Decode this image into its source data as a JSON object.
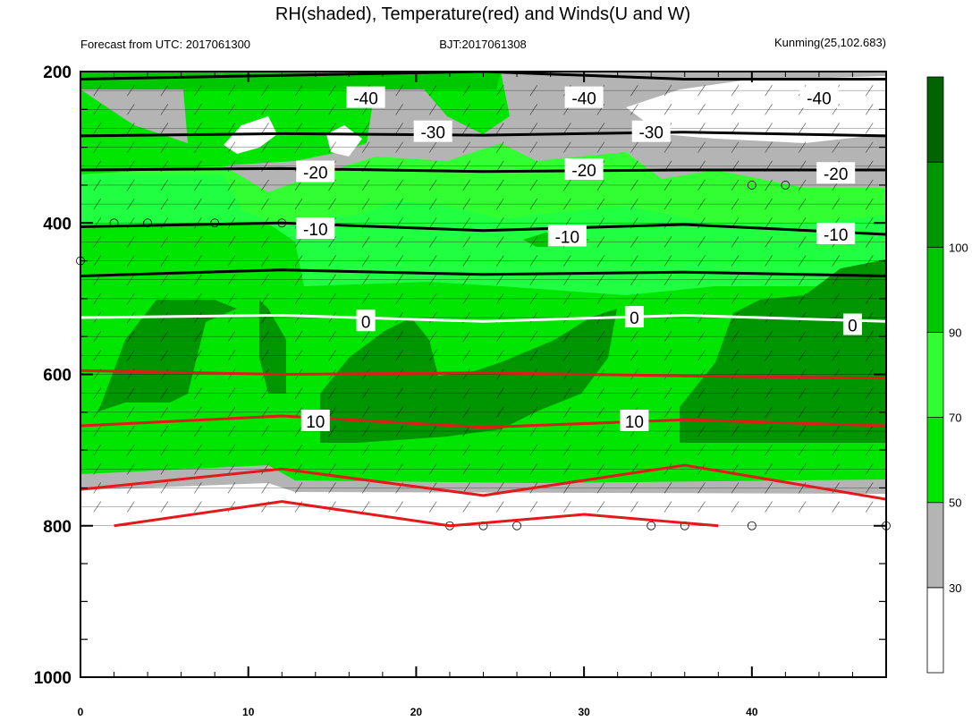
{
  "title": "RH(shaded), Temperature(red) and Winds(U and W)",
  "subtitle_left": "Forecast from UTC: 2017061300",
  "subtitle_center": "BJT:2017061308",
  "subtitle_right": "Kunming(25,102.683)",
  "chart_data": {
    "type": "contour",
    "x_ticks": [
      0,
      10,
      20,
      30,
      40
    ],
    "xlim": [
      0,
      48
    ],
    "y_ticks": [
      200,
      400,
      600,
      800,
      1000
    ],
    "ylim": [
      1000,
      200
    ],
    "y_inverted": true,
    "colorbar": {
      "ticks": [
        30,
        50,
        70,
        90,
        100
      ],
      "colors": [
        "#ffffff",
        "#b4b4b4",
        "#00e600",
        "#32ff32",
        "#00c800",
        "#009600",
        "#006400"
      ]
    },
    "temperature_contours": [
      {
        "label": "-40",
        "color": "#000000",
        "p": [
          210,
          205,
          200,
          210,
          210
        ],
        "x": [
          0,
          12,
          24,
          36,
          48
        ]
      },
      {
        "label": "-30",
        "color": "#000000",
        "p": [
          285,
          282,
          284,
          280,
          285
        ],
        "x": [
          0,
          12,
          24,
          36,
          48
        ]
      },
      {
        "label": "-20",
        "color": "#000000",
        "p": [
          330,
          328,
          332,
          330,
          330
        ],
        "x": [
          0,
          12,
          24,
          36,
          48
        ]
      },
      {
        "label": "-10",
        "color": "#000000",
        "p": [
          405,
          400,
          410,
          402,
          415
        ],
        "x": [
          0,
          12,
          24,
          36,
          48
        ]
      },
      {
        "label": "",
        "color": "#000000",
        "p": [
          470,
          462,
          468,
          465,
          470
        ],
        "x": [
          0,
          12,
          24,
          36,
          48
        ]
      },
      {
        "label": "0",
        "color": "#ffffff",
        "p": [
          525,
          522,
          530,
          522,
          530
        ],
        "x": [
          0,
          12,
          24,
          36,
          48
        ]
      },
      {
        "label": "",
        "color": "#e31a1c",
        "p": [
          595,
          600,
          598,
          602,
          605
        ],
        "x": [
          0,
          12,
          24,
          36,
          48
        ]
      },
      {
        "label": "10",
        "color": "#e31a1c",
        "p": [
          668,
          655,
          670,
          660,
          668
        ],
        "x": [
          0,
          12,
          24,
          36,
          48
        ]
      },
      {
        "label": "",
        "color": "#e31a1c",
        "p": [
          752,
          725,
          760,
          720,
          765
        ],
        "x": [
          0,
          12,
          24,
          36,
          48
        ]
      },
      {
        "label": "",
        "color": "#e31a1c",
        "p": [
          800,
          768,
          800,
          785,
          800
        ],
        "x": [
          2,
          12,
          22,
          30,
          38
        ]
      }
    ],
    "temperature_labels": [
      {
        "text": "-40",
        "x": 17,
        "p": 235
      },
      {
        "text": "-40",
        "x": 30,
        "p": 235
      },
      {
        "text": "-40",
        "x": 44,
        "p": 235
      },
      {
        "text": "-30",
        "x": 21,
        "p": 280
      },
      {
        "text": "-30",
        "x": 34,
        "p": 280
      },
      {
        "text": "-20",
        "x": 14,
        "p": 333
      },
      {
        "text": "-20",
        "x": 30,
        "p": 330
      },
      {
        "text": "-20",
        "x": 45,
        "p": 335
      },
      {
        "text": "-10",
        "x": 14,
        "p": 408
      },
      {
        "text": "-10",
        "x": 29,
        "p": 418
      },
      {
        "text": "-10",
        "x": 45,
        "p": 415
      },
      {
        "text": "0",
        "x": 17,
        "p": 530
      },
      {
        "text": "0",
        "x": 33,
        "p": 525
      },
      {
        "text": "0",
        "x": 46,
        "p": 535
      },
      {
        "text": "10",
        "x": 14,
        "p": 662
      },
      {
        "text": "10",
        "x": 33,
        "p": 662
      }
    ]
  }
}
